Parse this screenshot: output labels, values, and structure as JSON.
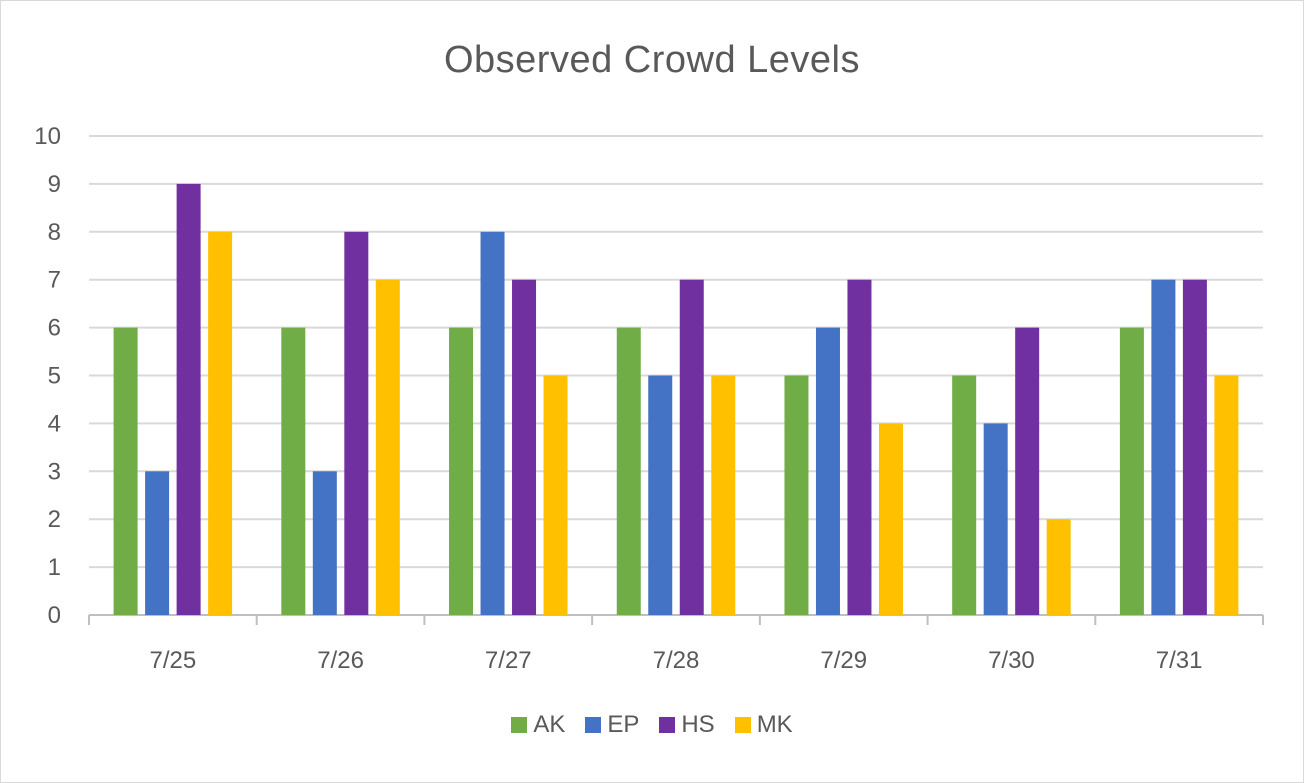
{
  "chart_data": {
    "type": "bar",
    "title": "Observed Crowd Levels",
    "xlabel": "",
    "ylabel": "",
    "ylim": [
      0,
      10
    ],
    "yticks": [
      "0",
      "1",
      "2",
      "3",
      "4",
      "5",
      "6",
      "7",
      "8",
      "9",
      "10"
    ],
    "grid": true,
    "legend_position": "bottom",
    "categories": [
      "7/25",
      "7/26",
      "7/27",
      "7/28",
      "7/29",
      "7/30",
      "7/31"
    ],
    "series": [
      {
        "name": "AK",
        "color": "#70ad47",
        "values": [
          6,
          6,
          6,
          6,
          5,
          5,
          6
        ]
      },
      {
        "name": "EP",
        "color": "#4472c4",
        "values": [
          3,
          3,
          8,
          5,
          6,
          4,
          7
        ]
      },
      {
        "name": "HS",
        "color": "#7030a0",
        "values": [
          9,
          8,
          7,
          7,
          7,
          6,
          7
        ]
      },
      {
        "name": "MK",
        "color": "#ffc000",
        "values": [
          8,
          7,
          5,
          5,
          4,
          2,
          5
        ]
      }
    ]
  }
}
